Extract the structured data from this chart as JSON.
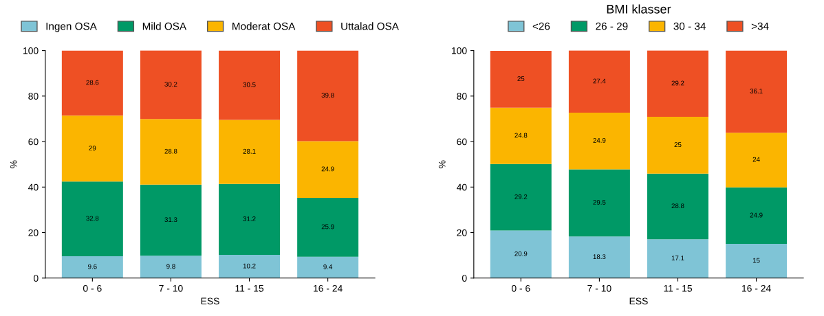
{
  "chart_data": [
    {
      "type": "bar",
      "stacked": true,
      "categories": [
        "0 - 6",
        "7 - 10",
        "11 - 15",
        "16 - 24"
      ],
      "xlabel": "ESS",
      "ylabel": "%",
      "ylim": [
        0,
        100
      ],
      "yticks": [
        0,
        20,
        40,
        60,
        80,
        100
      ],
      "data_labels": true,
      "legend": "top",
      "grid": false,
      "series": [
        {
          "name": "Ingen OSA",
          "color": "#7fc4d6",
          "values": [
            9.6,
            9.8,
            10.2,
            9.4
          ]
        },
        {
          "name": "Mild OSA",
          "color": "#009966",
          "values": [
            32.8,
            31.3,
            31.2,
            25.9
          ]
        },
        {
          "name": "Moderat OSA",
          "color": "#fbb500",
          "values": [
            29,
            28.8,
            28.1,
            24.9
          ]
        },
        {
          "name": "Uttalad OSA",
          "color": "#ee5024",
          "values": [
            28.6,
            30.2,
            30.5,
            39.8
          ]
        }
      ]
    },
    {
      "type": "bar",
      "stacked": true,
      "categories": [
        "0 - 6",
        "7 - 10",
        "11 - 15",
        "16 - 24"
      ],
      "xlabel": "ESS",
      "ylabel": "%",
      "ylim": [
        0,
        100
      ],
      "yticks": [
        0,
        20,
        40,
        60,
        80,
        100
      ],
      "data_labels": true,
      "legend": "top",
      "legend_title": "BMI klasser",
      "grid": false,
      "series": [
        {
          "name": "<26",
          "color": "#7fc4d6",
          "values": [
            20.9,
            18.3,
            17.1,
            15
          ]
        },
        {
          "name": "26 - 29",
          "color": "#009966",
          "values": [
            29.2,
            29.5,
            28.8,
            24.9
          ]
        },
        {
          "name": "30 - 34",
          "color": "#fbb500",
          "values": [
            24.8,
            24.9,
            25,
            24
          ]
        },
        {
          "name": ">34",
          "color": "#ee5024",
          "values": [
            25,
            27.4,
            29.2,
            36.1
          ]
        }
      ]
    }
  ]
}
